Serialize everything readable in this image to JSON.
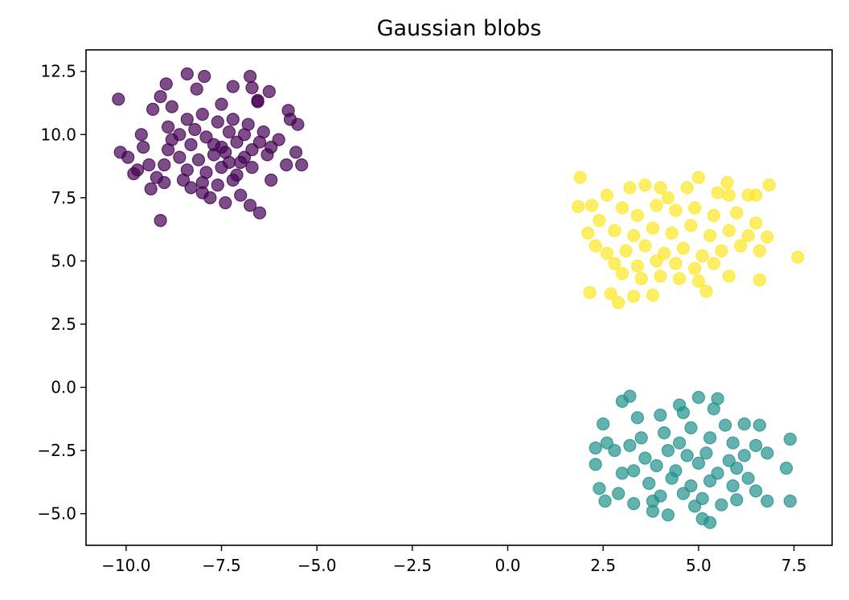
{
  "chart_data": {
    "type": "scatter",
    "title": "Gaussian blobs",
    "xlabel": "",
    "ylabel": "",
    "xlim": [
      -11.05,
      8.5
    ],
    "ylim": [
      -6.25,
      13.35
    ],
    "x_ticks": [
      -10.0,
      -7.5,
      -5.0,
      -2.5,
      0.0,
      2.5,
      5.0,
      7.5
    ],
    "x_tick_labels": [
      "−10.0",
      "−7.5",
      "−5.0",
      "−2.5",
      "0.0",
      "2.5",
      "5.0",
      "7.5"
    ],
    "y_ticks": [
      -5.0,
      -2.5,
      0.0,
      2.5,
      5.0,
      7.5,
      10.0,
      12.5
    ],
    "y_tick_labels": [
      "−5.0",
      "−2.5",
      "0.0",
      "2.5",
      "5.0",
      "7.5",
      "10.0",
      "12.5"
    ],
    "grid": false,
    "legend": "none",
    "marker_alpha": 0.7,
    "series": [
      {
        "color": "#440154",
        "center": [
          -7.5,
          9.4
        ],
        "points": [
          [
            -10.2,
            11.4
          ],
          [
            -9.1,
            11.5
          ],
          [
            -8.95,
            12.0
          ],
          [
            -8.4,
            12.4
          ],
          [
            -7.95,
            12.3
          ],
          [
            -6.75,
            12.3
          ],
          [
            -6.7,
            11.85
          ],
          [
            -7.2,
            11.9
          ],
          [
            -8.15,
            11.8
          ],
          [
            -6.55,
            11.3
          ],
          [
            -6.55,
            11.35
          ],
          [
            -6.25,
            11.7
          ],
          [
            -9.3,
            11.0
          ],
          [
            -8.8,
            11.1
          ],
          [
            -7.5,
            11.2
          ],
          [
            -5.75,
            10.95
          ],
          [
            -5.7,
            10.6
          ],
          [
            -5.5,
            10.4
          ],
          [
            -10.15,
            9.3
          ],
          [
            -9.95,
            9.1
          ],
          [
            -9.7,
            8.6
          ],
          [
            -9.4,
            8.8
          ],
          [
            -9.8,
            8.45
          ],
          [
            -9.2,
            8.3
          ],
          [
            -9.35,
            7.85
          ],
          [
            -9.0,
            8.1
          ],
          [
            -8.5,
            8.2
          ],
          [
            -8.0,
            7.7
          ],
          [
            -7.8,
            7.5
          ],
          [
            -7.4,
            7.3
          ],
          [
            -7.0,
            7.6
          ],
          [
            -6.75,
            7.2
          ],
          [
            -6.5,
            6.9
          ],
          [
            -9.1,
            6.6
          ],
          [
            -6.2,
            8.2
          ],
          [
            -5.8,
            8.8
          ],
          [
            -5.4,
            8.8
          ],
          [
            -5.55,
            9.3
          ],
          [
            -6.0,
            9.8
          ],
          [
            -6.4,
            10.1
          ],
          [
            -9.6,
            10.0
          ],
          [
            -9.55,
            9.5
          ],
          [
            -8.9,
            10.3
          ],
          [
            -8.4,
            10.6
          ],
          [
            -8.0,
            10.8
          ],
          [
            -7.6,
            10.5
          ],
          [
            -7.2,
            10.6
          ],
          [
            -6.8,
            10.4
          ],
          [
            -8.8,
            9.8
          ],
          [
            -8.3,
            9.6
          ],
          [
            -7.9,
            9.9
          ],
          [
            -7.5,
            9.5
          ],
          [
            -7.1,
            9.7
          ],
          [
            -6.7,
            9.4
          ],
          [
            -6.3,
            9.2
          ],
          [
            -8.6,
            9.1
          ],
          [
            -8.1,
            9.0
          ],
          [
            -7.7,
            9.2
          ],
          [
            -7.3,
            8.9
          ],
          [
            -6.9,
            9.1
          ],
          [
            -8.4,
            8.6
          ],
          [
            -7.9,
            8.5
          ],
          [
            -7.5,
            8.7
          ],
          [
            -7.1,
            8.4
          ],
          [
            -6.7,
            8.7
          ],
          [
            -8.0,
            8.1
          ],
          [
            -7.6,
            8.0
          ],
          [
            -7.2,
            8.2
          ],
          [
            -8.9,
            9.4
          ],
          [
            -7.3,
            10.1
          ],
          [
            -6.9,
            10.0
          ],
          [
            -8.2,
            10.2
          ],
          [
            -7.7,
            9.6
          ],
          [
            -7.4,
            9.3
          ],
          [
            -6.5,
            9.7
          ],
          [
            -8.6,
            10.0
          ],
          [
            -7.0,
            8.9
          ],
          [
            -6.2,
            9.5
          ],
          [
            -9.0,
            8.8
          ],
          [
            -8.3,
            7.9
          ]
        ]
      },
      {
        "color": "#21918c",
        "center": [
          4.5,
          -2.9
        ],
        "points": [
          [
            3.2,
            -0.35
          ],
          [
            3.0,
            -0.55
          ],
          [
            4.5,
            -0.7
          ],
          [
            5.0,
            -0.4
          ],
          [
            5.5,
            -0.45
          ],
          [
            5.4,
            -0.85
          ],
          [
            2.5,
            -1.45
          ],
          [
            3.4,
            -1.2
          ],
          [
            4.0,
            -1.1
          ],
          [
            4.6,
            -1.0
          ],
          [
            5.7,
            -1.5
          ],
          [
            6.2,
            -1.45
          ],
          [
            6.6,
            -1.5
          ],
          [
            2.3,
            -2.4
          ],
          [
            2.6,
            -2.2
          ],
          [
            2.8,
            -2.5
          ],
          [
            6.5,
            -2.3
          ],
          [
            6.8,
            -2.6
          ],
          [
            7.4,
            -2.05
          ],
          [
            7.3,
            -3.2
          ],
          [
            2.3,
            -3.05
          ],
          [
            2.4,
            -4.0
          ],
          [
            2.55,
            -4.5
          ],
          [
            2.9,
            -4.2
          ],
          [
            3.3,
            -4.6
          ],
          [
            3.8,
            -4.9
          ],
          [
            4.2,
            -5.05
          ],
          [
            5.1,
            -5.2
          ],
          [
            5.3,
            -5.35
          ],
          [
            5.6,
            -4.65
          ],
          [
            6.0,
            -4.45
          ],
          [
            6.5,
            -4.1
          ],
          [
            6.8,
            -4.5
          ],
          [
            7.4,
            -4.5
          ],
          [
            6.3,
            -3.6
          ],
          [
            3.0,
            -3.4
          ],
          [
            3.5,
            -2.0
          ],
          [
            4.1,
            -1.8
          ],
          [
            4.8,
            -1.6
          ],
          [
            5.3,
            -2.0
          ],
          [
            5.9,
            -2.2
          ],
          [
            3.6,
            -2.8
          ],
          [
            4.2,
            -2.5
          ],
          [
            4.7,
            -2.7
          ],
          [
            5.2,
            -2.6
          ],
          [
            5.8,
            -2.9
          ],
          [
            3.3,
            -3.3
          ],
          [
            3.9,
            -3.1
          ],
          [
            4.4,
            -3.3
          ],
          [
            5.0,
            -3.0
          ],
          [
            5.5,
            -3.4
          ],
          [
            6.0,
            -3.2
          ],
          [
            3.7,
            -3.8
          ],
          [
            4.3,
            -3.6
          ],
          [
            4.8,
            -3.9
          ],
          [
            5.3,
            -3.7
          ],
          [
            5.9,
            -3.9
          ],
          [
            4.0,
            -4.3
          ],
          [
            4.6,
            -4.2
          ],
          [
            5.1,
            -4.4
          ],
          [
            3.2,
            -2.3
          ],
          [
            6.2,
            -2.7
          ],
          [
            4.5,
            -2.2
          ],
          [
            3.8,
            -4.5
          ],
          [
            4.9,
            -4.7
          ]
        ]
      },
      {
        "color": "#fde725",
        "center": [
          4.2,
          6.0
        ],
        "points": [
          [
            1.9,
            8.3
          ],
          [
            2.2,
            7.2
          ],
          [
            1.85,
            7.15
          ],
          [
            2.6,
            7.6
          ],
          [
            3.2,
            7.9
          ],
          [
            3.6,
            8.0
          ],
          [
            4.0,
            7.9
          ],
          [
            4.7,
            7.9
          ],
          [
            5.0,
            8.3
          ],
          [
            5.5,
            7.7
          ],
          [
            5.8,
            7.6
          ],
          [
            6.3,
            7.6
          ],
          [
            6.5,
            7.6
          ],
          [
            5.75,
            8.1
          ],
          [
            6.85,
            8.0
          ],
          [
            7.6,
            5.15
          ],
          [
            6.8,
            5.95
          ],
          [
            6.6,
            5.4
          ],
          [
            6.6,
            4.25
          ],
          [
            5.8,
            4.4
          ],
          [
            5.2,
            3.8
          ],
          [
            2.15,
            3.75
          ],
          [
            2.7,
            3.7
          ],
          [
            2.9,
            3.35
          ],
          [
            3.3,
            3.6
          ],
          [
            3.8,
            3.65
          ],
          [
            2.1,
            6.1
          ],
          [
            2.3,
            5.6
          ],
          [
            2.4,
            6.6
          ],
          [
            2.8,
            4.9
          ],
          [
            3.0,
            4.5
          ],
          [
            3.5,
            4.3
          ],
          [
            4.0,
            4.4
          ],
          [
            4.5,
            4.3
          ],
          [
            5.0,
            4.2
          ],
          [
            3.0,
            7.1
          ],
          [
            3.4,
            6.8
          ],
          [
            3.9,
            7.2
          ],
          [
            4.4,
            7.0
          ],
          [
            4.9,
            7.1
          ],
          [
            5.4,
            6.8
          ],
          [
            6.0,
            6.9
          ],
          [
            2.8,
            6.2
          ],
          [
            3.3,
            6.0
          ],
          [
            3.8,
            6.3
          ],
          [
            4.3,
            6.1
          ],
          [
            4.8,
            6.4
          ],
          [
            5.3,
            6.0
          ],
          [
            5.8,
            6.2
          ],
          [
            6.3,
            6.0
          ],
          [
            3.1,
            5.4
          ],
          [
            3.6,
            5.6
          ],
          [
            4.1,
            5.3
          ],
          [
            4.6,
            5.5
          ],
          [
            5.1,
            5.2
          ],
          [
            5.6,
            5.4
          ],
          [
            6.1,
            5.6
          ],
          [
            3.4,
            4.8
          ],
          [
            3.9,
            5.0
          ],
          [
            4.4,
            4.9
          ],
          [
            4.9,
            4.7
          ],
          [
            5.4,
            4.9
          ],
          [
            2.6,
            5.3
          ],
          [
            6.5,
            6.5
          ],
          [
            4.2,
            7.5
          ]
        ]
      }
    ]
  }
}
